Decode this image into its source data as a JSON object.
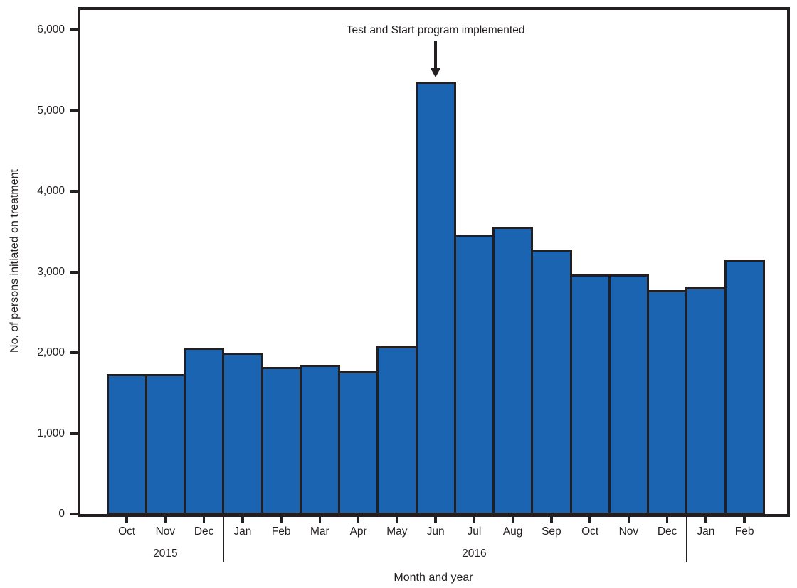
{
  "chart_data": {
    "type": "bar",
    "title": "",
    "xlabel": "Month and year",
    "ylabel": "No. of persons initiated on treatment",
    "ylim": [
      0,
      6000
    ],
    "grid": false,
    "legend": "none",
    "y_ticks": [
      {
        "value": 0,
        "label": "0"
      },
      {
        "value": 1000,
        "label": "1,000"
      },
      {
        "value": 2000,
        "label": "2,000"
      },
      {
        "value": 3000,
        "label": "3,000"
      },
      {
        "value": 4000,
        "label": "4,000"
      },
      {
        "value": 5000,
        "label": "5,000"
      },
      {
        "value": 6000,
        "label": "6,000"
      }
    ],
    "categories": [
      "Oct",
      "Nov",
      "Dec",
      "Jan",
      "Feb",
      "Mar",
      "Apr",
      "May",
      "Jun",
      "Jul",
      "Aug",
      "Sep",
      "Oct",
      "Nov",
      "Dec",
      "Jan",
      "Feb"
    ],
    "values": [
      1720,
      1720,
      2050,
      1990,
      1810,
      1840,
      1760,
      2070,
      5340,
      3450,
      3550,
      3260,
      2960,
      2960,
      2760,
      2800,
      3140
    ],
    "year_labels": [
      {
        "label": "2015",
        "anchor_month_index": 1
      },
      {
        "label": "2016",
        "anchor_month_index": 9
      }
    ],
    "year_separators_after_month": [
      3,
      15
    ],
    "annotation": {
      "text": "Test and Start program implemented",
      "target_month_index": 8
    },
    "colors": {
      "bar_fill": "#1b64b2",
      "line": "#231f20"
    }
  }
}
